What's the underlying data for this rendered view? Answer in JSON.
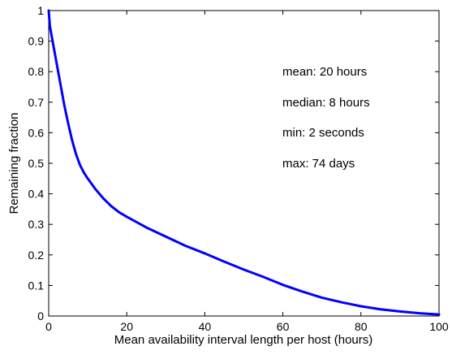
{
  "chart_data": {
    "type": "line",
    "title": "",
    "xlabel": "Mean availability interval length per host (hours)",
    "ylabel": "Remaining fraction",
    "xlim": [
      0,
      100
    ],
    "ylim": [
      0,
      1
    ],
    "x_ticks": [
      "0",
      "20",
      "40",
      "60",
      "80",
      "100"
    ],
    "y_ticks": [
      "0",
      "0.1",
      "0.2",
      "0.3",
      "0.4",
      "0.5",
      "0.6",
      "0.7",
      "0.8",
      "0.9",
      "1"
    ],
    "grid": false,
    "legend": "none",
    "series": [
      {
        "color": "#0000ff",
        "x": [
          0,
          0.3,
          1,
          2,
          3,
          4,
          5,
          6,
          7,
          8,
          9,
          10,
          12,
          14,
          16,
          18,
          20,
          25,
          30,
          35,
          40,
          45,
          50,
          55,
          60,
          65,
          70,
          75,
          80,
          85,
          90,
          95,
          100
        ],
        "y": [
          1.0,
          0.95,
          0.9,
          0.83,
          0.76,
          0.69,
          0.63,
          0.575,
          0.53,
          0.495,
          0.47,
          0.45,
          0.415,
          0.385,
          0.36,
          0.34,
          0.325,
          0.29,
          0.26,
          0.23,
          0.205,
          0.178,
          0.152,
          0.128,
          0.102,
          0.08,
          0.06,
          0.045,
          0.032,
          0.022,
          0.015,
          0.009,
          0.005
        ]
      }
    ],
    "annotations": [
      "mean: 20 hours",
      "median: 8 hours",
      "min: 2 seconds",
      "max: 74 days"
    ]
  }
}
